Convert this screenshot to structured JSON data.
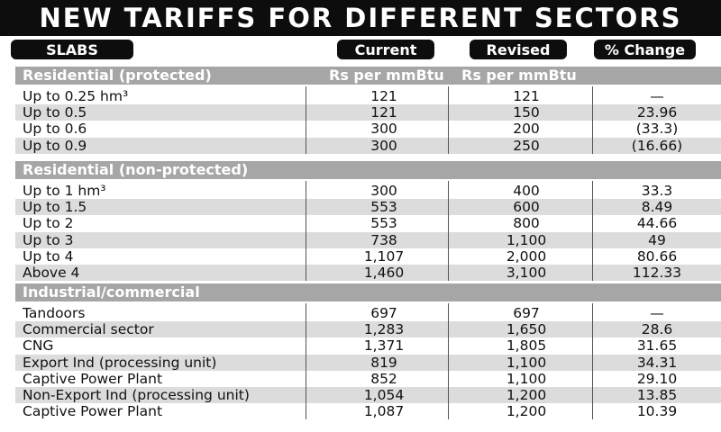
{
  "title": "NEW TARIFFS FOR DIFFERENT SECTORS",
  "headers": {
    "slabs": "SLABS",
    "current": "Current",
    "revised": "Revised",
    "change": "% Change"
  },
  "chart_data": {
    "type": "table",
    "columns": [
      "SLABS",
      "Current",
      "Revised",
      "% Change"
    ],
    "sections": [
      {
        "name": "Residential (protected)",
        "unit_current": "Rs per mmBtu",
        "unit_revised": "Rs per mmBtu",
        "rows": [
          {
            "slab": "Up to 0.25 hm³",
            "current": "121",
            "revised": "121",
            "change": "—"
          },
          {
            "slab": "Up to 0.5",
            "current": "121",
            "revised": "150",
            "change": "23.96"
          },
          {
            "slab": "Up to 0.6",
            "current": "300",
            "revised": "200",
            "change": "(33.3)"
          },
          {
            "slab": "Up to 0.9",
            "current": "300",
            "revised": "250",
            "change": "(16.66)"
          }
        ]
      },
      {
        "name": "Residential (non-protected)",
        "unit_current": "",
        "unit_revised": "",
        "rows": [
          {
            "slab": "Up to 1 hm³",
            "current": "300",
            "revised": "400",
            "change": "33.3"
          },
          {
            "slab": "Up to 1.5",
            "current": "553",
            "revised": "600",
            "change": "8.49"
          },
          {
            "slab": "Up to 2",
            "current": "553",
            "revised": "800",
            "change": "44.66"
          },
          {
            "slab": "Up to 3",
            "current": "738",
            "revised": "1,100",
            "change": "49"
          },
          {
            "slab": "Up to 4",
            "current": "1,107",
            "revised": "2,000",
            "change": "80.66"
          },
          {
            "slab": "Above 4",
            "current": "1,460",
            "revised": "3,100",
            "change": "112.33"
          }
        ]
      },
      {
        "name": "Industrial/commercial",
        "unit_current": "",
        "unit_revised": "",
        "rows": [
          {
            "slab": "Tandoors",
            "current": "697",
            "revised": "697",
            "change": "—"
          },
          {
            "slab": "Commercial sector",
            "current": "1,283",
            "revised": "1,650",
            "change": "28.6"
          },
          {
            "slab": "CNG",
            "current": "1,371",
            "revised": "1,805",
            "change": "31.65"
          },
          {
            "slab": "Export Ind (processing unit)",
            "current": "819",
            "revised": "1,100",
            "change": "34.31"
          },
          {
            "slab": "Captive Power Plant",
            "current": "852",
            "revised": "1,100",
            "change": "29.10"
          },
          {
            "slab": "Non-Export Ind (processing unit)",
            "current": "1,054",
            "revised": "1,200",
            "change": "13.85"
          },
          {
            "slab": "Captive Power Plant",
            "current": "1,087",
            "revised": "1,200",
            "change": "10.39"
          }
        ]
      }
    ]
  }
}
